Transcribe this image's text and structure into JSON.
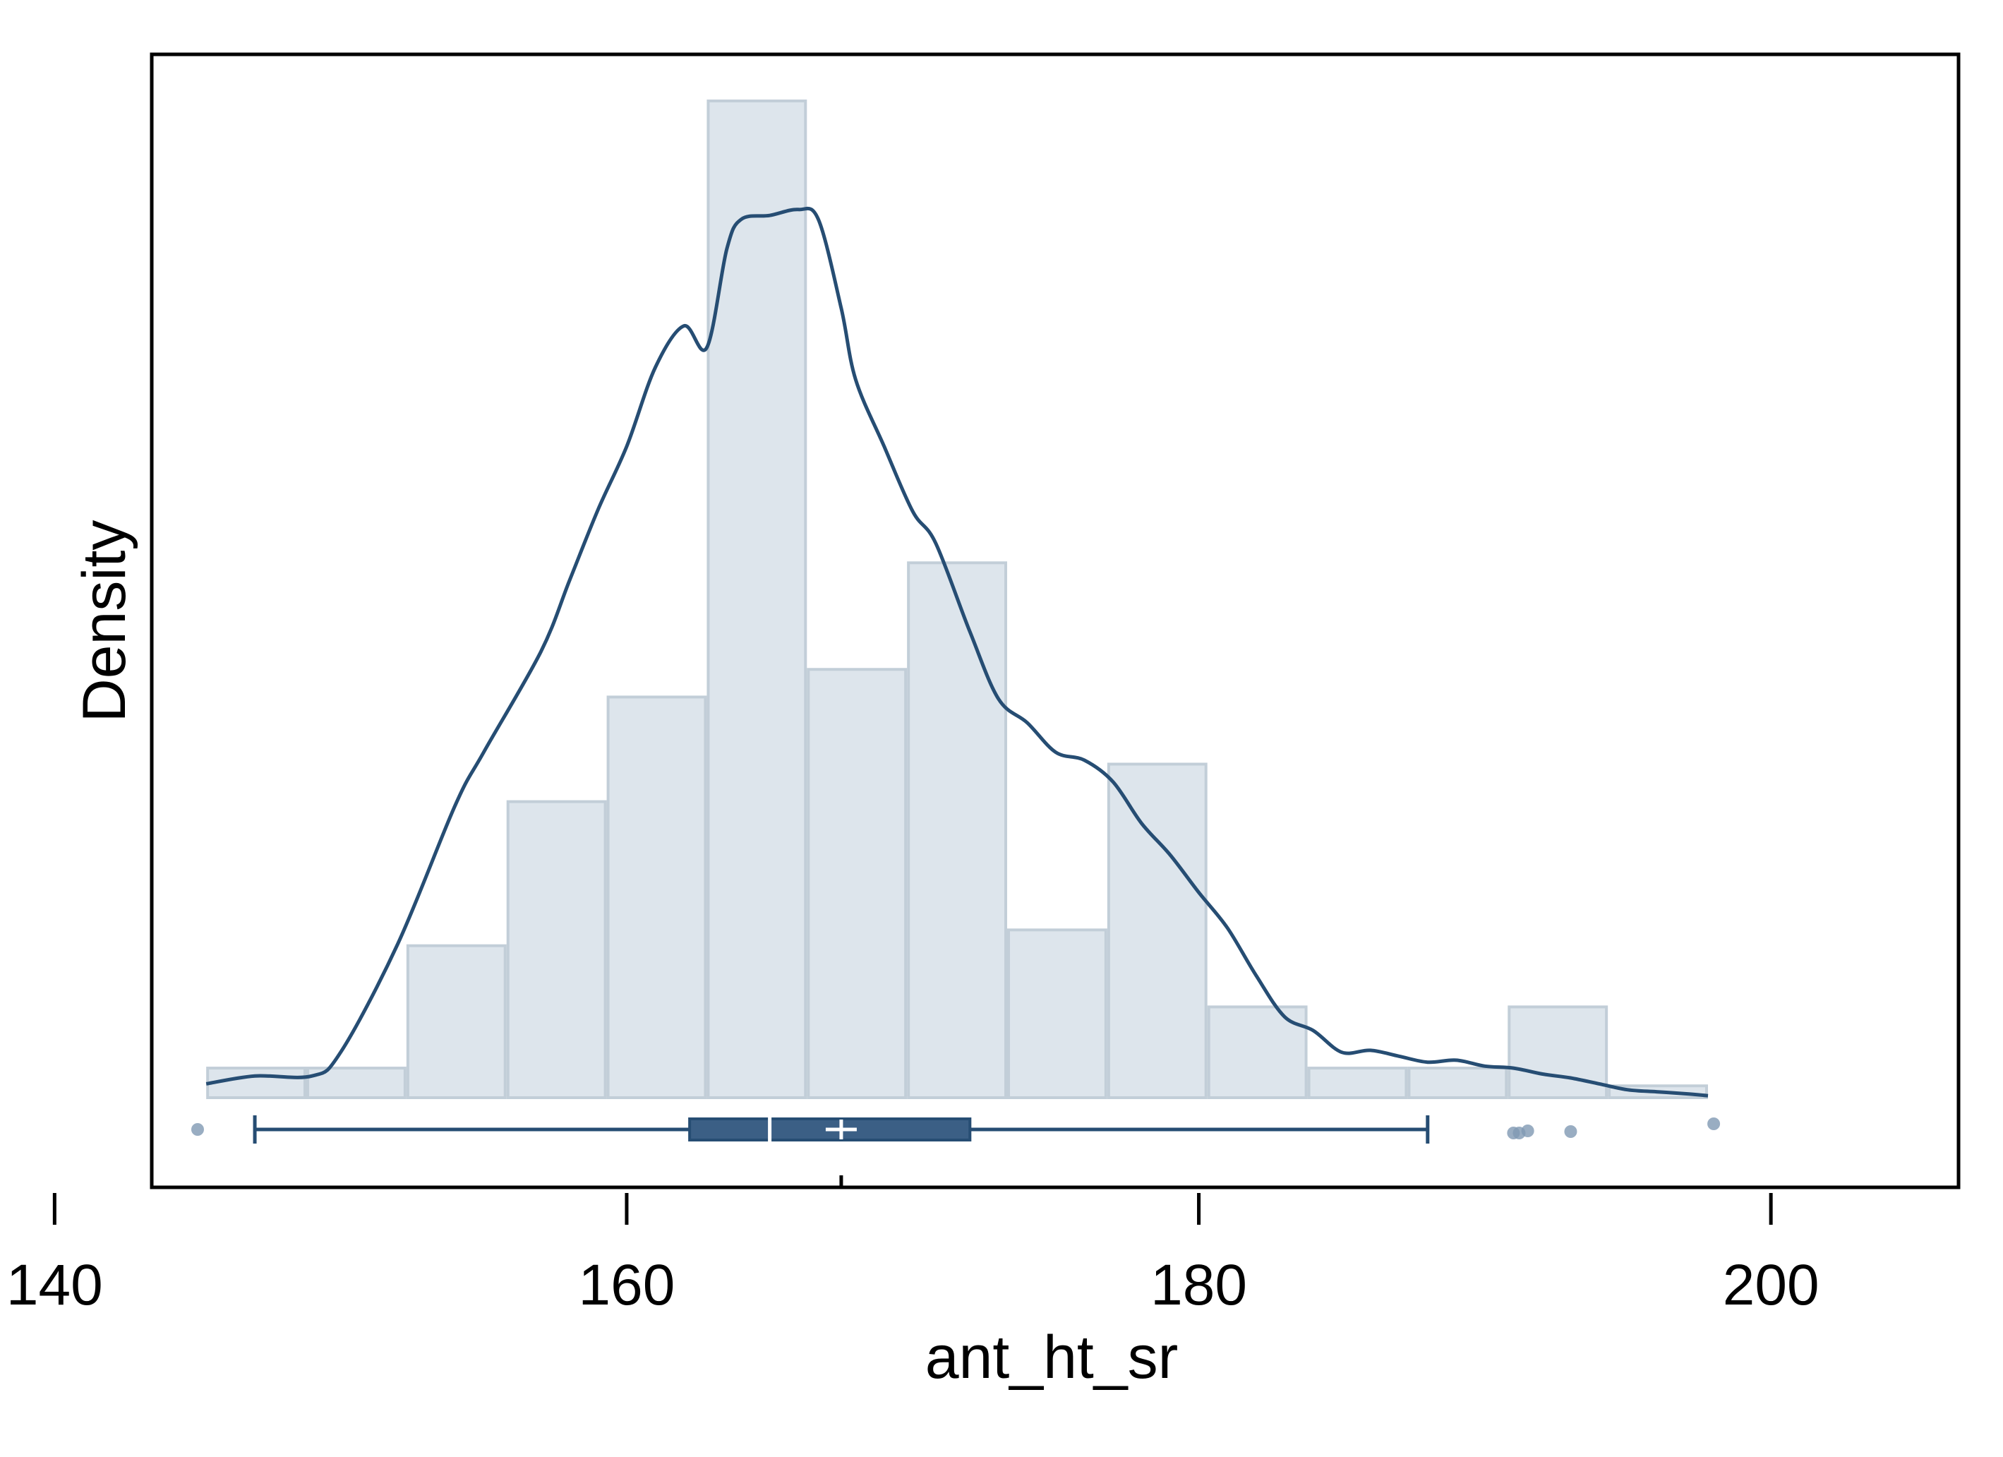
{
  "chart_data": {
    "type": "histogram",
    "title": "",
    "xlabel": "ant_ht_sr",
    "ylabel": "Density",
    "xlim": [
      140,
      200
    ],
    "x_ticks": [
      "140",
      "160",
      "180",
      "200"
    ],
    "y_ticks_shown": false,
    "grid": false,
    "legend": "none",
    "bin_edges": [
      145.3,
      148.8,
      152.3,
      155.8,
      159.3,
      162.8,
      166.3,
      169.8,
      173.3,
      176.8,
      180.3,
      183.8,
      187.3,
      190.8,
      194.3,
      197.8
    ],
    "bin_density": [
      0.0015,
      0.0015,
      0.0077,
      0.015,
      0.0203,
      0.0505,
      0.0217,
      0.0271,
      0.0085,
      0.0169,
      0.0046,
      0.0015,
      0.0015,
      0.0046,
      0.0006
    ],
    "density_curve": {
      "x": [
        145.3,
        147,
        149,
        150,
        152,
        154,
        155,
        157,
        158,
        159,
        160,
        161,
        162,
        162.8,
        163.5,
        164,
        165,
        166,
        166.7,
        167.5,
        168,
        169,
        170,
        170.8,
        172,
        173,
        174,
        175,
        176,
        177,
        178,
        179,
        180,
        181,
        182,
        183,
        184,
        185,
        186,
        187,
        188,
        189,
        190,
        191,
        192,
        193,
        194,
        195,
        196,
        197,
        197.8
      ],
      "y": [
        0.0007,
        0.0011,
        0.0011,
        0.0023,
        0.0078,
        0.0148,
        0.0175,
        0.0226,
        0.0262,
        0.0298,
        0.033,
        0.037,
        0.0391,
        0.038,
        0.043,
        0.0445,
        0.0447,
        0.045,
        0.0445,
        0.04,
        0.0364,
        0.033,
        0.0297,
        0.0281,
        0.0236,
        0.0202,
        0.019,
        0.0175,
        0.0171,
        0.016,
        0.0139,
        0.0123,
        0.0104,
        0.0086,
        0.0062,
        0.0041,
        0.0034,
        0.0023,
        0.0024,
        0.0021,
        0.0018,
        0.0019,
        0.0016,
        0.0015,
        0.0012,
        0.001,
        0.0007,
        0.0004,
        0.0003,
        0.0002,
        0.0001
      ]
    },
    "boxplot": {
      "whisker_low": 147.0,
      "q1": 162.2,
      "median": 165.0,
      "mean": 167.5,
      "q3": 172.0,
      "whisker_high": 188.0,
      "outliers": [
        145.0,
        191.2,
        191.5,
        191.0,
        193.0,
        198.0
      ]
    },
    "colors": {
      "bar_fill": "#dde5ec",
      "bar_stroke": "#c2ced8",
      "curve": "#264d73",
      "box": "#3b5f85",
      "outlier": "#7f99b3"
    }
  }
}
